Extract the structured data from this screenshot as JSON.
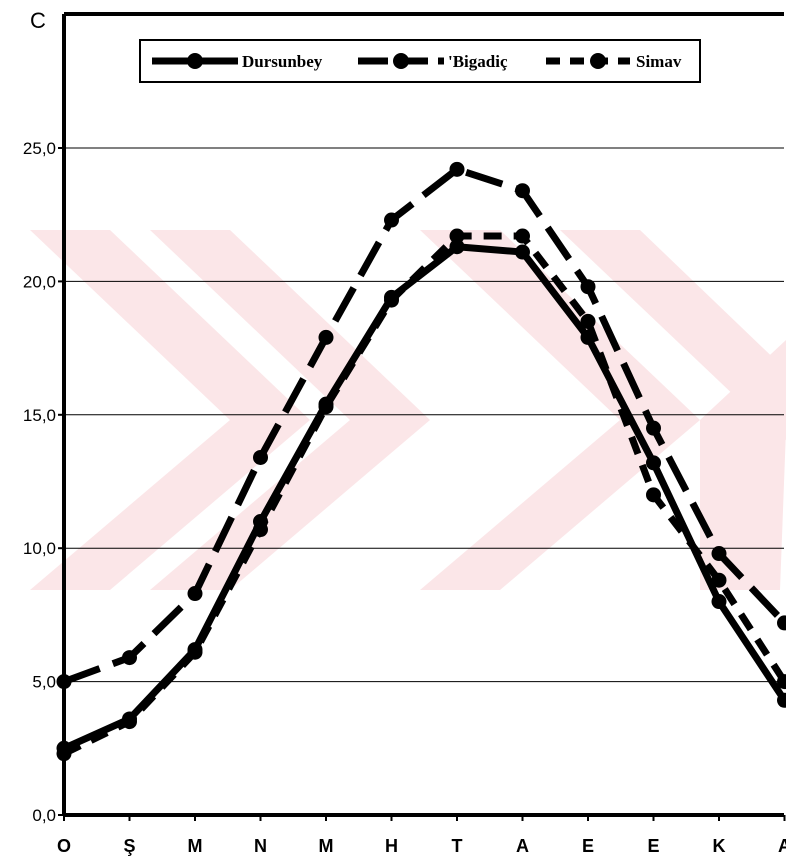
{
  "chart_data": {
    "type": "line",
    "y_unit_label": "C",
    "categories": [
      "O",
      "Ş",
      "M",
      "N",
      "M",
      "H",
      "T",
      "A",
      "E",
      "E",
      "K",
      "A"
    ],
    "ylim": [
      0,
      25
    ],
    "y_ticks": [
      "0,0",
      "5,0",
      "10,0",
      "15,0",
      "20,0",
      "25,0"
    ],
    "y_tick_values": [
      0,
      5,
      10,
      15,
      20,
      25
    ],
    "grid": true,
    "legend_position": "top",
    "series": [
      {
        "name": "Dursunbey",
        "style": "solid",
        "values": [
          2.5,
          3.6,
          6.2,
          11.0,
          15.4,
          19.4,
          21.3,
          21.1,
          17.9,
          13.2,
          8.0,
          4.3
        ]
      },
      {
        "name": "'Bigadiç",
        "style": "long-dash",
        "values": [
          5.0,
          5.9,
          8.3,
          13.4,
          17.9,
          22.3,
          24.2,
          23.4,
          19.8,
          14.5,
          9.8,
          7.2
        ]
      },
      {
        "name": "Simav",
        "style": "short-dash",
        "values": [
          2.3,
          3.5,
          6.1,
          10.7,
          15.3,
          19.3,
          21.7,
          21.7,
          18.5,
          12.0,
          8.8,
          5.0
        ]
      }
    ],
    "colors": {
      "line": "#000000",
      "grid": "#000000",
      "watermark": "#fbe6e8"
    }
  }
}
